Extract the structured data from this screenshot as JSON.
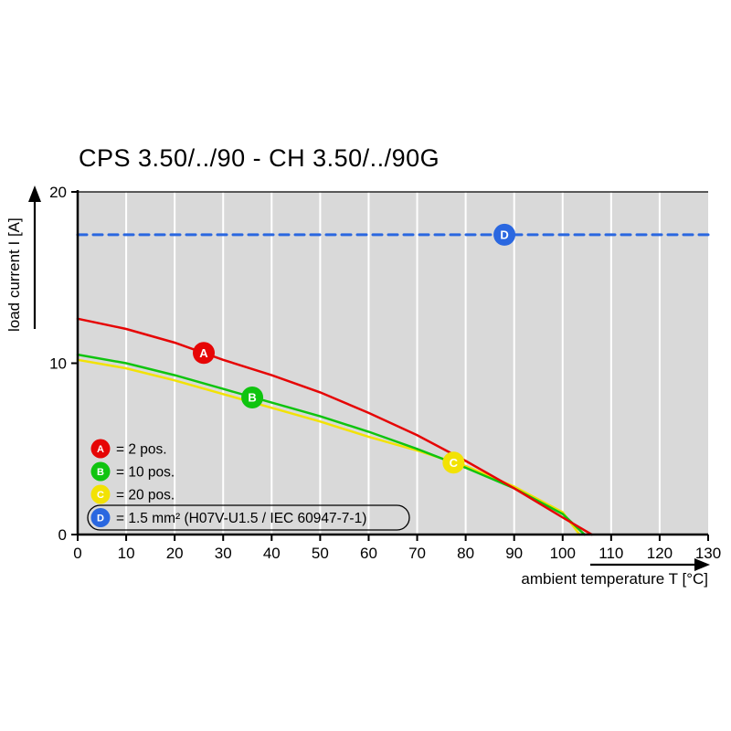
{
  "title": "CPS 3.50/../90 - CH 3.50/../90G",
  "chart_data": {
    "type": "line",
    "title": "CPS 3.50/../90 - CH 3.50/../90G",
    "xlabel": "ambient temperature T [°C]",
    "ylabel": "load current I [A]",
    "xlim": [
      0,
      130
    ],
    "ylim": [
      0,
      20
    ],
    "x_ticks": [
      0,
      10,
      20,
      30,
      40,
      50,
      60,
      70,
      80,
      90,
      100,
      110,
      120,
      130
    ],
    "y_ticks": [
      0,
      10,
      20
    ],
    "grid": {
      "vertical": true,
      "color": "#ffffff",
      "plot_bg": "#d9d9d9"
    },
    "series": [
      {
        "name": "C",
        "label": "20 pos.",
        "color": "#f2e205",
        "style": "solid",
        "stroke_width": 2.5,
        "x": [
          0,
          10,
          20,
          30,
          40,
          50,
          60,
          70,
          80,
          90,
          100,
          103.5
        ],
        "y": [
          10.2,
          9.7,
          9.0,
          8.2,
          7.4,
          6.6,
          5.7,
          4.9,
          4.0,
          2.8,
          1.3,
          0
        ],
        "marker": {
          "letter": "C",
          "x": 77.5,
          "y": 4.2
        }
      },
      {
        "name": "B",
        "label": "10 pos.",
        "color": "#0fc40f",
        "style": "solid",
        "stroke_width": 2.5,
        "x": [
          0,
          10,
          20,
          30,
          40,
          50,
          60,
          70,
          80,
          90,
          100,
          104.5
        ],
        "y": [
          10.5,
          10.0,
          9.3,
          8.5,
          7.7,
          6.9,
          6.0,
          5.0,
          3.9,
          2.7,
          1.2,
          0
        ],
        "marker": {
          "letter": "B",
          "x": 36,
          "y": 8.0
        }
      },
      {
        "name": "A",
        "label": "2 pos.",
        "color": "#e60505",
        "style": "solid",
        "stroke_width": 2.5,
        "x": [
          0,
          10,
          20,
          30,
          40,
          50,
          60,
          70,
          80,
          90,
          100,
          106
        ],
        "y": [
          12.6,
          12.0,
          11.2,
          10.2,
          9.3,
          8.3,
          7.1,
          5.8,
          4.3,
          2.7,
          1.0,
          0
        ],
        "marker": {
          "letter": "A",
          "x": 26,
          "y": 10.6
        }
      },
      {
        "name": "D",
        "label": "1.5 mm² (H07V-U1.5 / IEC 60947-7-1)",
        "color": "#2a67e0",
        "style": "dashed",
        "stroke_width": 3,
        "x": [
          0,
          130
        ],
        "y": [
          17.5,
          17.5
        ],
        "marker": {
          "letter": "D",
          "x": 88,
          "y": 17.5
        }
      }
    ],
    "legend": {
      "position": "inside-bottom-left",
      "items": [
        {
          "letter": "A",
          "color": "#e60505",
          "text": "= 2 pos.",
          "boxed": false
        },
        {
          "letter": "B",
          "color": "#0fc40f",
          "text": "= 10 pos.",
          "boxed": false
        },
        {
          "letter": "C",
          "color": "#f2e205",
          "text": "= 20 pos.",
          "boxed": false
        },
        {
          "letter": "D",
          "color": "#2a67e0",
          "text": "= 1.5 mm² (H07V-U1.5 / IEC 60947-7-1)",
          "boxed": true
        }
      ]
    }
  }
}
